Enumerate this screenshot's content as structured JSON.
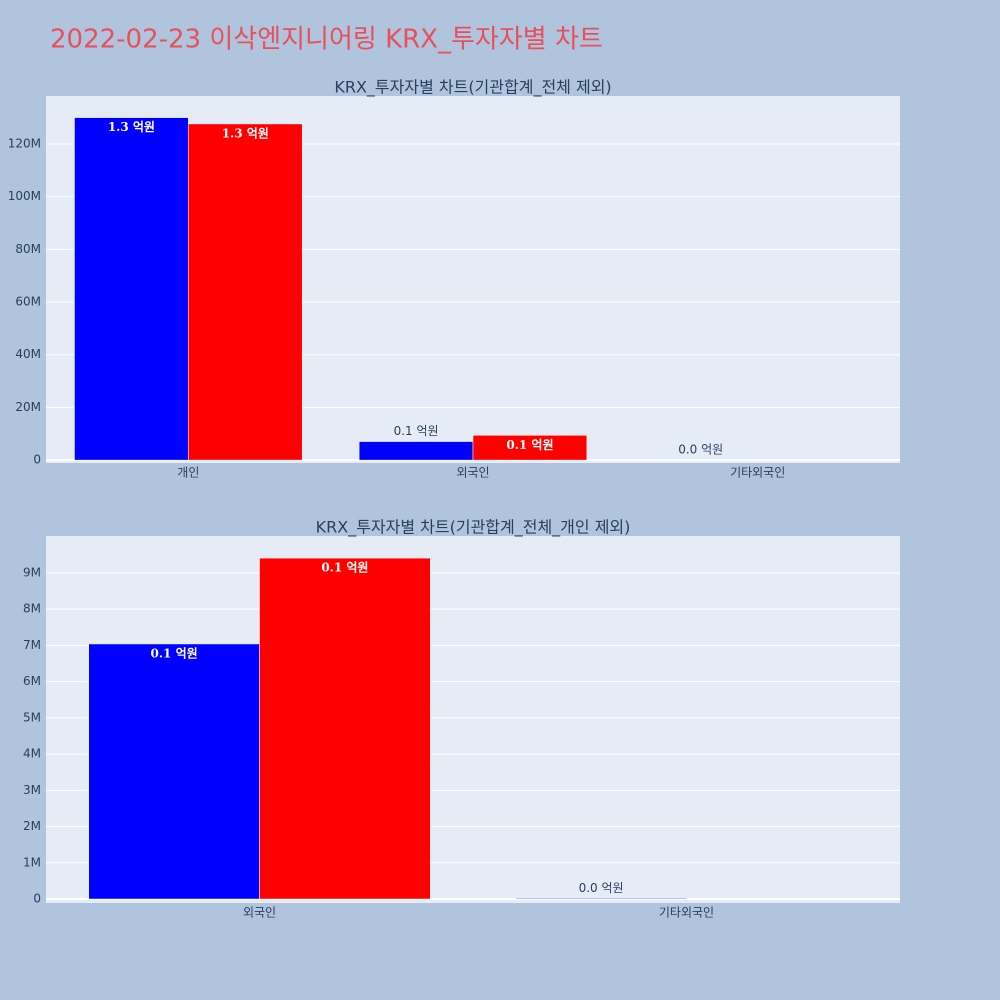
{
  "title": "2022-02-23 이삭엔지니어링 KRX_투자자별 차트",
  "chart_data": [
    {
      "type": "bar",
      "title": "KRX_투자자별 차트(기관합계_전체 제외)",
      "categories": [
        "개인",
        "외국인",
        "기타외국인"
      ],
      "series": [
        {
          "color": "#0000ff",
          "values": [
            130000000,
            7040000,
            20000
          ],
          "value_labels": [
            "1.3 억원",
            "0.1 억원",
            "0.0 억원"
          ]
        },
        {
          "color": "#ff0000",
          "values": [
            127600000,
            9410000,
            null
          ],
          "value_labels": [
            "1.3 억원",
            "0.1 억원",
            null
          ]
        }
      ],
      "ylim": [
        -1100000,
        138200000
      ],
      "yticks": [
        0,
        {
          "value": 20000000,
          "label": "20M"
        },
        {
          "value": 40000000,
          "label": "40M"
        },
        {
          "value": 60000000,
          "label": "60M"
        },
        {
          "value": 80000000,
          "label": "80M"
        },
        {
          "value": 100000000,
          "label": "100M"
        },
        {
          "value": 120000000,
          "label": "120M"
        }
      ],
      "grid": true
    },
    {
      "type": "bar",
      "title": "KRX_투자자별 차트(기관합계_전체_개인 제외)",
      "categories": [
        "외국인",
        "기타외국인"
      ],
      "series": [
        {
          "color": "#0000ff",
          "values": [
            7040000,
            20000
          ],
          "value_labels": [
            "0.1 억원",
            "0.0 억원"
          ]
        },
        {
          "color": "#ff0000",
          "values": [
            9410000,
            null
          ],
          "value_labels": [
            "0.1 억원",
            null
          ]
        }
      ],
      "ylim": [
        -110000,
        10020000
      ],
      "yticks": [
        0,
        {
          "value": 1000000,
          "label": "1M"
        },
        {
          "value": 2000000,
          "label": "2M"
        },
        {
          "value": 3000000,
          "label": "3M"
        },
        {
          "value": 4000000,
          "label": "4M"
        },
        {
          "value": 5000000,
          "label": "5M"
        },
        {
          "value": 6000000,
          "label": "6M"
        },
        {
          "value": 7000000,
          "label": "7M"
        },
        {
          "value": 8000000,
          "label": "8M"
        },
        {
          "value": 9000000,
          "label": "9M"
        }
      ],
      "grid": true
    }
  ]
}
